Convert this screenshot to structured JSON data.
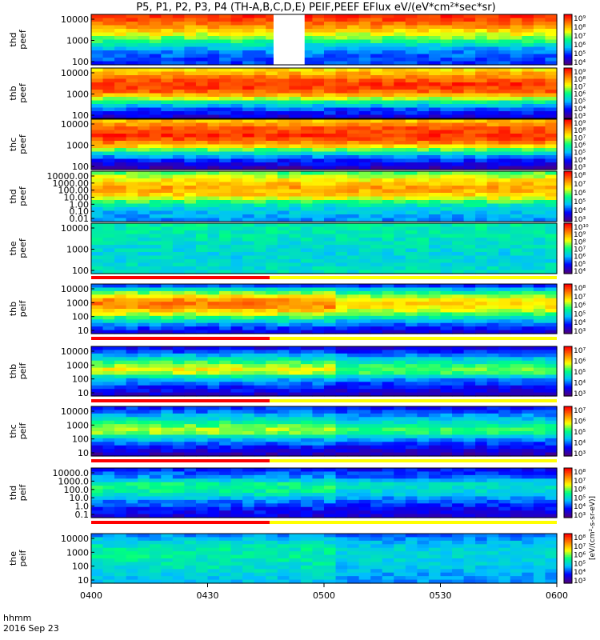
{
  "chart_data": {
    "type": "heatmap",
    "title": "P5, P1, P2, P3, P4 (TH-A,B,C,D,E) PEIF,PEEF EFlux eV/(eV*cm²*sec*sr)",
    "colorbar_unit": "[eV/(cm²-s-sr-eV)]",
    "colorscale": [
      "#4b0082",
      "#0000ff",
      "#00bfff",
      "#00ff80",
      "#ffff00",
      "#ff8000",
      "#ff0000"
    ],
    "x_axis": {
      "label_line1": "hhmm",
      "label_line2": "2016 Sep 23",
      "ticks": [
        "0400",
        "0430",
        "0500",
        "0530",
        "0600"
      ],
      "range": [
        "04:00",
        "06:00"
      ]
    },
    "panels": [
      {
        "label": [
          "thd",
          "peef"
        ],
        "yticks": [
          "10000",
          "1000",
          "100"
        ],
        "cbar_ticks": [
          "10⁹",
          "10⁸",
          "10⁷",
          "10⁶",
          "10⁵",
          "10⁴"
        ],
        "data_gap": [
          "04:47",
          "04:55"
        ]
      },
      {
        "label": [
          "thb",
          "peef"
        ],
        "yticks": [
          "10000",
          "1000",
          "100"
        ],
        "cbar_ticks": [
          "10⁹",
          "10⁸",
          "10⁷",
          "10⁶",
          "10⁵",
          "10⁴",
          "10³"
        ]
      },
      {
        "label": [
          "thc",
          "peef"
        ],
        "yticks": [
          "10000",
          "1000",
          "100"
        ],
        "cbar_ticks": [
          "10⁹",
          "10⁸",
          "10⁷",
          "10⁶",
          "10⁵",
          "10⁴",
          "10³"
        ]
      },
      {
        "label": [
          "thd",
          "peef"
        ],
        "yticks": [
          "10000.00",
          "1000.00",
          "100.00",
          "10.00",
          "1.00",
          "0.10",
          "0.01"
        ],
        "cbar_ticks": [
          "10⁸",
          "10⁷",
          "10⁶",
          "10⁵",
          "10⁴",
          "10³"
        ]
      },
      {
        "label": [
          "the",
          "peef"
        ],
        "yticks": [
          "10000",
          "1000",
          "100"
        ],
        "cbar_ticks": [
          "10¹⁰",
          "10⁹",
          "10⁸",
          "10⁷",
          "10⁶",
          "10⁵",
          "10⁴"
        ]
      },
      {
        "label": [
          "thb",
          "peif"
        ],
        "yticks": [
          "10000",
          "1000",
          "100",
          "10"
        ],
        "cbar_ticks": [
          "10⁸",
          "10⁷",
          "10⁶",
          "10⁵",
          "10⁴",
          "10³"
        ]
      },
      {
        "label": [
          "thb",
          "peif"
        ],
        "yticks": [
          "10000",
          "1000",
          "100",
          "10"
        ],
        "cbar_ticks": [
          "10⁷",
          "10⁶",
          "10⁵",
          "10⁴",
          "10³"
        ]
      },
      {
        "label": [
          "thc",
          "peif"
        ],
        "yticks": [
          "10000",
          "1000",
          "100",
          "10"
        ],
        "cbar_ticks": [
          "10⁷",
          "10⁶",
          "10⁵",
          "10⁴",
          "10³"
        ]
      },
      {
        "label": [
          "thd",
          "peif"
        ],
        "yticks": [
          "10000.0",
          "1000.0",
          "100.0",
          "10.0",
          "1.0",
          "0.1"
        ],
        "cbar_ticks": [
          "10⁸",
          "10⁷",
          "10⁶",
          "10⁵",
          "10⁴",
          "10³"
        ]
      },
      {
        "label": [
          "the",
          "peif"
        ],
        "yticks": [
          "10000",
          "1000",
          "100",
          "10"
        ],
        "cbar_ticks": [
          "10⁸",
          "10⁷",
          "10⁶",
          "10⁵",
          "10⁴",
          "10³"
        ]
      }
    ],
    "flag_bars": [
      {
        "color": "#ff0000",
        "start": "04:00",
        "end": "04:46"
      },
      {
        "color": "#ffff00",
        "start": "04:46",
        "end": "06:00"
      }
    ]
  }
}
